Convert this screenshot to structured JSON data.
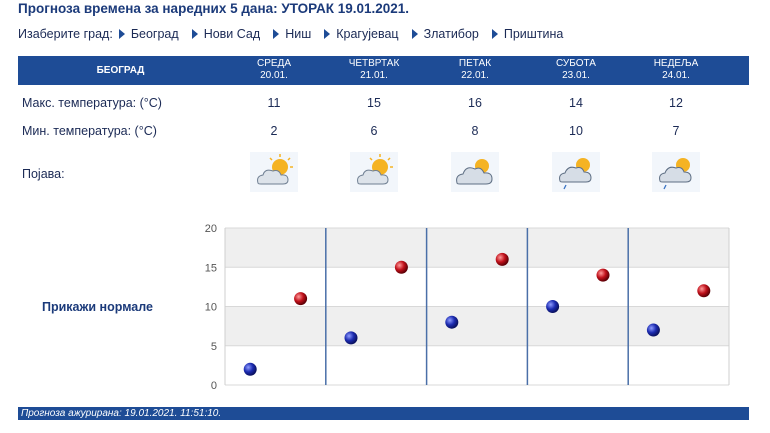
{
  "header": {
    "title": "Прогноза времена за наредних 5 дана: УТОРАК  19.01.2021."
  },
  "city_select": {
    "label": "Изаберите град:",
    "cities": [
      "Београд",
      "Нови Сад",
      "Ниш",
      "Крагујевац",
      "Златибор",
      "Приштина"
    ]
  },
  "table": {
    "city": "БЕОГРАД",
    "days": [
      {
        "name": "СРЕДА",
        "date": "20.01."
      },
      {
        "name": "ЧЕТВРТАК",
        "date": "21.01."
      },
      {
        "name": "ПЕТАК",
        "date": "22.01."
      },
      {
        "name": "СУБОТА",
        "date": "23.01."
      },
      {
        "name": "НЕДЕЉА",
        "date": "24.01."
      }
    ],
    "max_label": "Макс. температура: (°C)",
    "min_label": "Мин. температура: (°C)",
    "phenomena_label": "Појава:",
    "max": [
      "11",
      "15",
      "16",
      "14",
      "12"
    ],
    "min": [
      "2",
      "6",
      "8",
      "10",
      "7"
    ],
    "icons": [
      "sun-behind-cloud-icon",
      "sun-behind-cloud-icon",
      "sun-behind-cloud-icon",
      "sun-cloud-rain-icon",
      "sun-cloud-rain-icon"
    ]
  },
  "normals": {
    "label": "Прикажи нормале"
  },
  "chart_data": {
    "type": "scatter",
    "categories": [
      "СРЕДА",
      "ЧЕТВРТАК",
      "ПЕТАК",
      "СУБОТА",
      "НЕДЕЉА"
    ],
    "series": [
      {
        "values": [
          2,
          6,
          8,
          10,
          7
        ],
        "color": "#1c2bb0"
      },
      {
        "values": [
          11,
          15,
          16,
          14,
          12
        ],
        "color": "#c0101a"
      }
    ],
    "yticks": [
      0,
      5,
      10,
      15,
      20
    ],
    "ylim": [
      0,
      20
    ],
    "grid": true,
    "band_colors": [
      "#ffffff",
      "#efefef"
    ],
    "divider_color": "#4a6fa8"
  },
  "footer": {
    "text": "Прогноза ажурирана:  19.01.2021.  11:51:10."
  },
  "colors": {
    "accent": "#1e4c96",
    "text": "#1b2a55"
  }
}
